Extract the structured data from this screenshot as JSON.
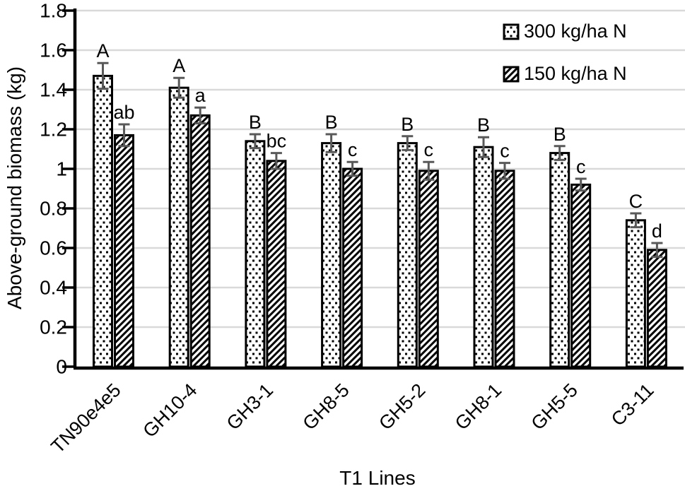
{
  "chart_data": {
    "type": "bar",
    "title": "",
    "xlabel": "T1 Lines",
    "ylabel": "Above-ground biomass (kg)",
    "ylim": [
      0,
      1.8
    ],
    "ytick_step": 0.2,
    "ytick_values": [
      0,
      0.2,
      0.4,
      0.6,
      0.8,
      1,
      1.2,
      1.4,
      1.6,
      1.8
    ],
    "ytick_labels": [
      "0",
      "0.2",
      "0.4",
      "0.6",
      "0.8",
      "1",
      "1.2",
      "1.4",
      "1.6",
      "1.8"
    ],
    "grid": true,
    "legend_position": "top-right",
    "categories": [
      "TN90e4e5",
      "GH10-4",
      "GH3-1",
      "GH8-5",
      "GH5-2",
      "GH8-1",
      "GH5-5",
      "C3-11"
    ],
    "series": [
      {
        "name": "300 kg/ha N",
        "pattern": "dots",
        "values": [
          1.47,
          1.41,
          1.14,
          1.13,
          1.13,
          1.11,
          1.08,
          0.74
        ],
        "errors": [
          0.065,
          0.05,
          0.035,
          0.045,
          0.035,
          0.05,
          0.035,
          0.035
        ],
        "sig_letters": [
          "A",
          "A",
          "B",
          "B",
          "B",
          "B",
          "B",
          "C"
        ]
      },
      {
        "name": "150 kg/ha N",
        "pattern": "diagonal",
        "values": [
          1.17,
          1.27,
          1.04,
          1.0,
          0.99,
          0.99,
          0.92,
          0.59
        ],
        "errors": [
          0.055,
          0.04,
          0.04,
          0.035,
          0.045,
          0.04,
          0.03,
          0.035
        ],
        "sig_letters": [
          "ab",
          "a",
          "bc",
          "c",
          "c",
          "c",
          "c",
          "d"
        ]
      }
    ],
    "colors": {
      "bar_fill": "#ffffff",
      "bar_stroke": "#000000",
      "pattern_ink": "#000000",
      "error_bar": "#595959",
      "gridline": "#d9d9d9",
      "axis": "#000000",
      "text": "#000000"
    }
  }
}
